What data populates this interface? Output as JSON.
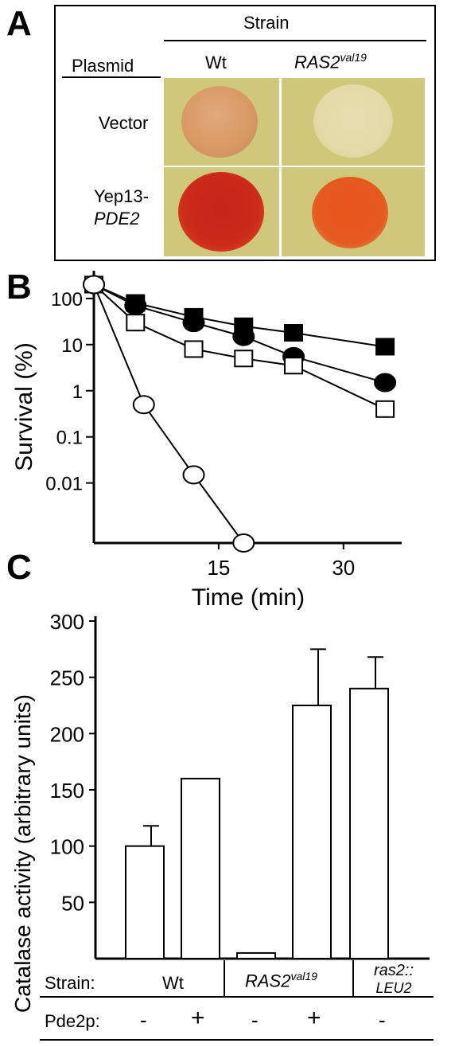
{
  "panel_a": {
    "letter": "A",
    "strain_header": "Strain",
    "plasmid_header": "Plasmid",
    "col_wt": "Wt",
    "col_ras2_main": "RAS2",
    "col_ras2_sup": "val19",
    "row_vector": "Vector",
    "row_yep13_line1": "Yep13-",
    "row_yep13_line2": "PDE2",
    "colors": {
      "plate": "#cfc77a",
      "spot_pale": "#d9a06a",
      "spot_faint": "#e4dcaa",
      "spot_dark": "#cc2a1a",
      "spot_orange": "#e5581e"
    }
  },
  "panel_b": {
    "letter": "B"
  },
  "panel_c": {
    "letter": "C",
    "strain_label": "Strain:",
    "pde_label": "Pde2p:",
    "group_wt": "Wt",
    "group_ras2_main": "RAS2",
    "group_ras2_sup": "val19",
    "group_ras2leu_line1": "ras2::",
    "group_ras2leu_line2": "LEU2",
    "pde_values": [
      "-",
      "+",
      "-",
      "+",
      "-"
    ]
  },
  "chart_data": [
    {
      "type": "line",
      "xlabel": "Time (min)",
      "ylabel": "Survival (%)",
      "yscale": "log",
      "x_ticks": [
        15,
        30
      ],
      "y_ticks": [
        "100",
        "10",
        "1",
        "0.1",
        "0.01"
      ],
      "y_tick_values": [
        100,
        10,
        1,
        0.1,
        0.01
      ],
      "xlim": [
        0,
        37
      ],
      "ylim": [
        0.0005,
        400
      ],
      "series": [
        {
          "marker": "filled-square",
          "x": [
            0,
            5,
            12,
            18,
            24,
            35
          ],
          "y": [
            200,
            80,
            40,
            25,
            18,
            9
          ]
        },
        {
          "marker": "filled-circle",
          "x": [
            0,
            5,
            12,
            18,
            24,
            35
          ],
          "y": [
            200,
            70,
            30,
            15,
            5.5,
            1.5
          ]
        },
        {
          "marker": "open-square",
          "x": [
            0,
            5,
            12,
            18,
            24,
            35
          ],
          "y": [
            200,
            30,
            8,
            5,
            3.5,
            0.4
          ]
        },
        {
          "marker": "open-circle",
          "x": [
            0,
            6,
            12,
            18
          ],
          "y": [
            200,
            0.5,
            0.015,
            0.0005
          ]
        }
      ]
    },
    {
      "type": "bar",
      "ylabel": "Catalase activity (arbitrary units)",
      "ylim": [
        0,
        300
      ],
      "y_ticks": [
        50,
        100,
        150,
        200,
        250,
        300
      ],
      "categories": [
        "Wt -",
        "Wt +",
        "RAS2val19 -",
        "RAS2val19 +",
        "ras2::LEU2 -"
      ],
      "values": [
        100,
        160,
        5,
        225,
        240
      ],
      "errors": [
        18,
        0,
        0,
        50,
        28
      ]
    }
  ]
}
